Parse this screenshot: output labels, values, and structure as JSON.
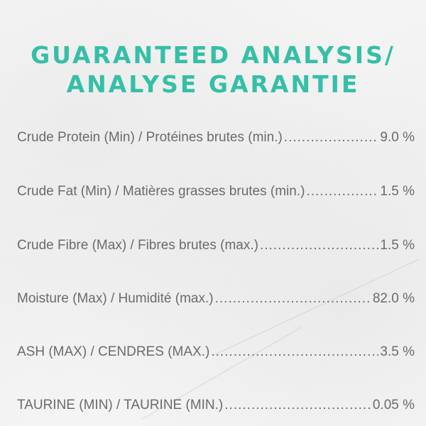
{
  "title": {
    "line1": "GUARANTEED ANALYSIS/",
    "line2": "ANALYSE GARANTIE",
    "color": "#35bfa6"
  },
  "rows": [
    {
      "label": "Crude Protein (Min) / Protéines brutes (min.)",
      "value": "9.0 %"
    },
    {
      "label": "Crude Fat (Min) / Matières grasses brutes (min.)",
      "value": "1.5 %"
    },
    {
      "label": "Crude Fibre (Max) / Fibres brutes (max.)",
      "value": "1.5 %"
    },
    {
      "label": "Moisture (Max) / Humidité (max.)",
      "value": "82.0 %"
    },
    {
      "label": "ASH (MAX) / CENDRES (MAX.)",
      "value": "3.5 %"
    },
    {
      "label": "TAURINE (MIN) / TAURINE (MIN.)",
      "value": "0.05 %"
    }
  ]
}
